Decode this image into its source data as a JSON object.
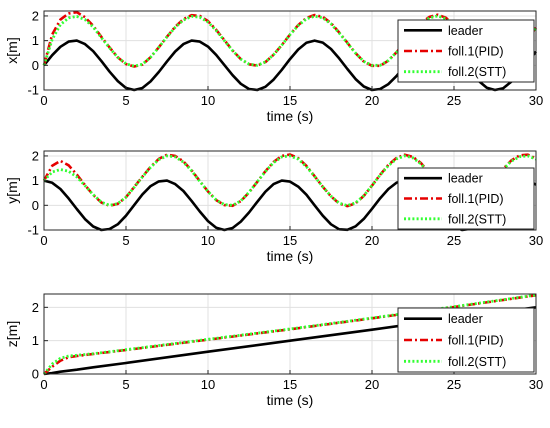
{
  "chart_data": [
    {
      "type": "line",
      "xlabel": "time (s)",
      "ylabel": "x[m]",
      "xlim": [
        0,
        30
      ],
      "ylim": [
        -1,
        2.2
      ],
      "xticks": [
        "0",
        "5",
        "10",
        "15",
        "20",
        "25",
        "30"
      ],
      "yticks": [
        "-1",
        "0",
        "1",
        "2"
      ],
      "grid": true,
      "legend_position": "top-right",
      "x": [
        0,
        0.5,
        1,
        1.5,
        2,
        2.5,
        3,
        3.5,
        4,
        4.5,
        5,
        5.5,
        6,
        6.5,
        7,
        7.5,
        8,
        8.5,
        9,
        9.5,
        10,
        10.5,
        11,
        11.5,
        12,
        12.5,
        13,
        13.5,
        14,
        14.5,
        15,
        15.5,
        16,
        16.5,
        17,
        17.5,
        18,
        18.5,
        19,
        19.5,
        20,
        20.5,
        21,
        21.5,
        22,
        22.5,
        23,
        23.5,
        24,
        24.5,
        25,
        25.5,
        26,
        26.5,
        27,
        27.5,
        28,
        28.5,
        29,
        29.5,
        30
      ],
      "series": [
        {
          "name": "leader",
          "color": "#000000",
          "dash": "solid",
          "values": [
            0.0,
            0.41,
            0.75,
            0.96,
            1.0,
            0.86,
            0.57,
            0.17,
            -0.26,
            -0.64,
            -0.92,
            -1.0,
            -0.92,
            -0.65,
            -0.27,
            0.16,
            0.56,
            0.86,
            1.0,
            0.96,
            0.76,
            0.42,
            0.01,
            -0.4,
            -0.75,
            -0.96,
            -1.0,
            -0.87,
            -0.58,
            -0.18,
            0.25,
            0.64,
            0.91,
            1.0,
            0.92,
            0.66,
            0.28,
            -0.15,
            -0.56,
            -0.86,
            -1.0,
            -0.96,
            -0.76,
            -0.43,
            -0.02,
            0.4,
            0.74,
            0.95,
            1.0,
            0.87,
            0.59,
            0.19,
            -0.24,
            -0.63,
            -0.91,
            -1.0,
            -0.93,
            -0.66,
            -0.29,
            0.14,
            0.55
          ]
        },
        {
          "name": "foll.1(PID)",
          "color": "#e60000",
          "dash": "dashdot",
          "values": [
            0.0,
            1.25,
            1.85,
            2.1,
            2.15,
            1.95,
            1.6,
            1.15,
            0.72,
            0.32,
            0.05,
            -0.05,
            0.03,
            0.33,
            0.73,
            1.16,
            1.56,
            1.87,
            2.03,
            2.0,
            1.79,
            1.44,
            1.02,
            0.6,
            0.25,
            0.04,
            -0.01,
            0.13,
            0.43,
            0.82,
            1.25,
            1.63,
            1.92,
            2.04,
            1.96,
            1.71,
            1.33,
            0.91,
            0.49,
            0.15,
            -0.02,
            -0.02,
            0.19,
            0.53,
            0.95,
            1.37,
            1.73,
            1.96,
            2.05,
            1.93,
            1.64,
            1.24,
            0.8,
            0.4,
            0.1,
            -0.02,
            0.05,
            0.3,
            0.68,
            1.1,
            1.52
          ]
        },
        {
          "name": "foll.2(STT)",
          "color": "#33ff33",
          "dash": "dotted",
          "values": [
            0.0,
            1.05,
            1.65,
            1.92,
            1.98,
            1.85,
            1.55,
            1.12,
            0.7,
            0.32,
            0.06,
            -0.03,
            0.04,
            0.33,
            0.73,
            1.15,
            1.54,
            1.83,
            1.98,
            1.95,
            1.75,
            1.41,
            1.0,
            0.59,
            0.25,
            0.05,
            0.0,
            0.14,
            0.43,
            0.82,
            1.24,
            1.61,
            1.88,
            1.99,
            1.92,
            1.68,
            1.31,
            0.9,
            0.49,
            0.16,
            0.0,
            0.0,
            0.2,
            0.53,
            0.94,
            1.35,
            1.7,
            1.92,
            2.0,
            1.89,
            1.61,
            1.22,
            0.79,
            0.4,
            0.11,
            0.0,
            0.06,
            0.3,
            0.68,
            1.09,
            1.49
          ]
        }
      ]
    },
    {
      "type": "line",
      "xlabel": "time (s)",
      "ylabel": "y[m]",
      "xlim": [
        0,
        30
      ],
      "ylim": [
        -1,
        2.2
      ],
      "xticks": [
        "0",
        "5",
        "10",
        "15",
        "20",
        "25",
        "30"
      ],
      "yticks": [
        "-1",
        "0",
        "1",
        "2"
      ],
      "grid": true,
      "legend_position": "top-right",
      "x": [
        0,
        0.5,
        1,
        1.5,
        2,
        2.5,
        3,
        3.5,
        4,
        4.5,
        5,
        5.5,
        6,
        6.5,
        7,
        7.5,
        8,
        8.5,
        9,
        9.5,
        10,
        10.5,
        11,
        11.5,
        12,
        12.5,
        13,
        13.5,
        14,
        14.5,
        15,
        15.5,
        16,
        16.5,
        17,
        17.5,
        18,
        18.5,
        19,
        19.5,
        20,
        20.5,
        21,
        21.5,
        22,
        22.5,
        23,
        23.5,
        24,
        24.5,
        25,
        25.5,
        26,
        26.5,
        27,
        27.5,
        28,
        28.5,
        29,
        29.5,
        30
      ],
      "series": [
        {
          "name": "leader",
          "color": "#000000",
          "dash": "solid",
          "values": [
            1.0,
            0.91,
            0.66,
            0.28,
            -0.15,
            -0.56,
            -0.86,
            -1.0,
            -0.96,
            -0.77,
            -0.42,
            0.01,
            0.44,
            0.78,
            0.97,
            1.0,
            0.86,
            0.58,
            0.18,
            -0.25,
            -0.64,
            -0.91,
            -1.0,
            -0.92,
            -0.66,
            -0.29,
            0.14,
            0.55,
            0.86,
            1.0,
            0.96,
            0.76,
            0.43,
            0.0,
            -0.42,
            -0.77,
            -0.97,
            -0.99,
            -0.85,
            -0.55,
            -0.14,
            0.29,
            0.66,
            0.92,
            1.0,
            0.91,
            0.64,
            0.26,
            -0.17,
            -0.58,
            -0.87,
            -1.0,
            -0.95,
            -0.74,
            -0.39,
            0.04,
            0.46,
            0.8,
            0.98,
            0.99,
            0.84
          ]
        },
        {
          "name": "foll.1(PID)",
          "color": "#e60000",
          "dash": "dashdot",
          "values": [
            1.0,
            1.6,
            1.8,
            1.62,
            1.25,
            0.82,
            0.42,
            0.11,
            -0.02,
            0.06,
            0.33,
            0.74,
            1.16,
            1.56,
            1.88,
            2.05,
            2.0,
            1.78,
            1.42,
            0.98,
            0.56,
            0.21,
            0.01,
            -0.02,
            0.17,
            0.52,
            0.95,
            1.38,
            1.76,
            2.0,
            2.06,
            1.91,
            1.6,
            1.18,
            0.75,
            0.36,
            0.07,
            -0.03,
            0.08,
            0.38,
            0.8,
            1.24,
            1.64,
            1.92,
            2.05,
            1.96,
            1.7,
            1.31,
            0.88,
            0.46,
            0.14,
            -0.02,
            0.03,
            0.25,
            0.62,
            1.05,
            1.48,
            1.82,
            2.02,
            2.05,
            1.9
          ]
        },
        {
          "name": "foll.2(STT)",
          "color": "#33ff33",
          "dash": "dotted",
          "values": [
            1.0,
            1.35,
            1.45,
            1.38,
            1.15,
            0.8,
            0.43,
            0.13,
            0.0,
            0.07,
            0.33,
            0.73,
            1.15,
            1.54,
            1.85,
            2.0,
            1.96,
            1.75,
            1.4,
            0.97,
            0.56,
            0.22,
            0.03,
            0.0,
            0.18,
            0.53,
            0.95,
            1.37,
            1.73,
            1.96,
            2.0,
            1.87,
            1.57,
            1.17,
            0.75,
            0.37,
            0.09,
            -0.01,
            0.1,
            0.39,
            0.8,
            1.23,
            1.61,
            1.88,
            2.0,
            1.92,
            1.67,
            1.3,
            0.88,
            0.47,
            0.16,
            0.0,
            0.05,
            0.27,
            0.63,
            1.05,
            1.46,
            1.79,
            1.97,
            2.0,
            1.87
          ]
        }
      ]
    },
    {
      "type": "line",
      "xlabel": "time (s)",
      "ylabel": "z[m]",
      "xlim": [
        0,
        30
      ],
      "ylim": [
        0,
        2.4
      ],
      "xticks": [
        "0",
        "5",
        "10",
        "15",
        "20",
        "25",
        "30"
      ],
      "yticks": [
        "0",
        "1",
        "2"
      ],
      "grid": true,
      "legend_position": "bottom-right",
      "x": [
        0,
        0.5,
        1,
        1.5,
        2,
        3,
        5,
        10,
        15,
        20,
        25,
        30
      ],
      "series": [
        {
          "name": "leader",
          "color": "#000000",
          "dash": "solid",
          "values": [
            0.0,
            0.03,
            0.07,
            0.1,
            0.13,
            0.2,
            0.33,
            0.67,
            1.0,
            1.33,
            1.67,
            2.0
          ]
        },
        {
          "name": "foll.1(PID)",
          "color": "#e60000",
          "dash": "dashdot",
          "values": [
            0.0,
            0.22,
            0.4,
            0.5,
            0.54,
            0.6,
            0.72,
            1.03,
            1.34,
            1.67,
            2.01,
            2.36
          ]
        },
        {
          "name": "foll.2(STT)",
          "color": "#33ff33",
          "dash": "dotted",
          "values": [
            0.0,
            0.3,
            0.47,
            0.54,
            0.56,
            0.61,
            0.73,
            1.04,
            1.35,
            1.68,
            2.02,
            2.37
          ]
        }
      ]
    }
  ]
}
